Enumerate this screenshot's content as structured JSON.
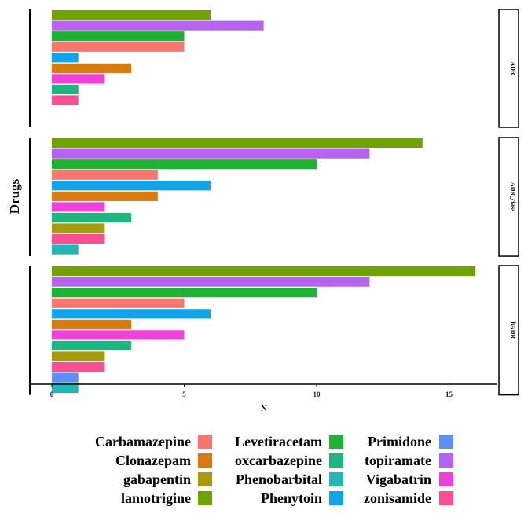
{
  "chart_data": {
    "type": "bar",
    "orientation": "horizontal",
    "xlabel": "N",
    "ylabel": "Drugs",
    "xlim": [
      -0.9,
      16.9
    ],
    "xticks": [
      0,
      5,
      10,
      15
    ],
    "grid": false,
    "legend_position": "bottom",
    "panels": [
      {
        "label": "ADR",
        "bars": [
          {
            "drug": "lamotrigine",
            "value": 6
          },
          {
            "drug": "Phenytoin",
            "value": 8
          },
          {
            "drug": "Primidone",
            "value": 5
          },
          {
            "drug": "Carbamazepine",
            "value": 5
          },
          {
            "drug": "zonisamide",
            "value": 1
          },
          {
            "drug": "Clonazepam",
            "value": 3
          },
          {
            "drug": "oxcarbazepine",
            "value": 2
          },
          {
            "drug": "topiramate",
            "value": 1
          },
          {
            "drug": "Vigabatrin",
            "value": 1
          }
        ]
      },
      {
        "label": "ADR_class",
        "bars": [
          {
            "drug": "lamotrigine",
            "value": 14
          },
          {
            "drug": "Phenytoin",
            "value": 12
          },
          {
            "drug": "Primidone",
            "value": 10
          },
          {
            "drug": "Carbamazepine",
            "value": 4
          },
          {
            "drug": "zonisamide",
            "value": 6
          },
          {
            "drug": "Clonazepam",
            "value": 4
          },
          {
            "drug": "oxcarbazepine",
            "value": 2
          },
          {
            "drug": "topiramate",
            "value": 3
          },
          {
            "drug": "gabapentin",
            "value": 2
          },
          {
            "drug": "Vigabatrin",
            "value": 2
          },
          {
            "drug": "Levetiracetam",
            "value": 1
          }
        ]
      },
      {
        "label": "hADR",
        "bars": [
          {
            "drug": "lamotrigine",
            "value": 16
          },
          {
            "drug": "Phenytoin",
            "value": 12
          },
          {
            "drug": "Primidone",
            "value": 10
          },
          {
            "drug": "Carbamazepine",
            "value": 5
          },
          {
            "drug": "zonisamide",
            "value": 6
          },
          {
            "drug": "Clonazepam",
            "value": 3
          },
          {
            "drug": "oxcarbazepine",
            "value": 5
          },
          {
            "drug": "topiramate",
            "value": 3
          },
          {
            "drug": "gabapentin",
            "value": 2
          },
          {
            "drug": "Vigabatrin",
            "value": 2
          },
          {
            "drug": "Phenobarbital",
            "value": 1
          },
          {
            "drug": "Levetiracetam",
            "value": 1
          }
        ]
      }
    ],
    "legend": [
      {
        "label": "Carbamazepine",
        "color": "#F8766D"
      },
      {
        "label": "Clonazepam",
        "color": "#D89000"
      },
      {
        "label": "gabapentin",
        "color": "#A3A500"
      },
      {
        "label": "lamotrigine",
        "color": "#72A40A"
      },
      {
        "label": "Levetiracetam",
        "color": "#F8766D"
      },
      {
        "label": "oxcarbazepine",
        "color": "#DB7A0E"
      },
      {
        "label": "Phenobarbital",
        "color": "#A89A0C"
      },
      {
        "label": "Phenytoin",
        "color": "#6FA300"
      },
      {
        "label": "Primidone",
        "color": "#1DB436"
      },
      {
        "label": "topiramate",
        "color": "#1CB67E"
      },
      {
        "label": "Vigabatrin",
        "color": "#22B6B4"
      },
      {
        "label": "zonisamide",
        "color": "#12A4E8"
      },
      {
        "label": "",
        "color": "#5D8EFA"
      },
      {
        "label": "",
        "color": "#B762F3"
      },
      {
        "label": "",
        "color": "#EE41D8"
      },
      {
        "label": "",
        "color": "#FB4D92"
      }
    ],
    "drug_colors": {
      "lamotrigine": "#6FA300",
      "Phenytoin": "#B762F3",
      "Primidone": "#1DB436",
      "Carbamazepine": "#F8766D",
      "zonisamide": "#12A4E8",
      "Clonazepam": "#D87A0E",
      "oxcarbazepine": "#EE41D8",
      "topiramate": "#1CB67E",
      "gabapentin": "#A89A0C",
      "Vigabatrin": "#FB4D92",
      "Levetiracetam": "#22B6B4",
      "Phenobarbital": "#5D8EFA"
    }
  }
}
